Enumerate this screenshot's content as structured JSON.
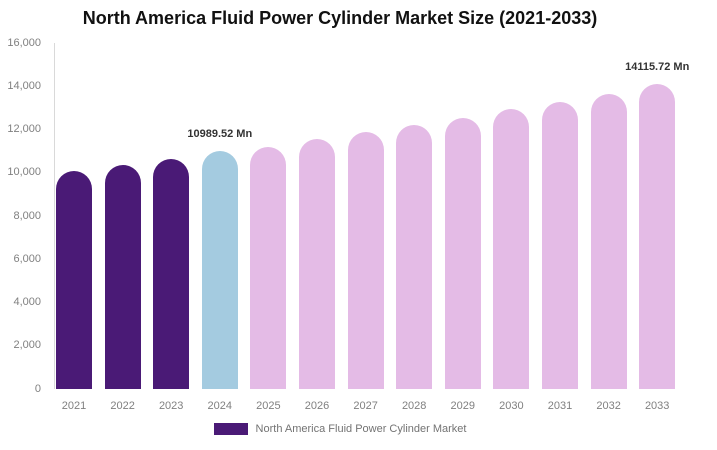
{
  "title": "North America Fluid Power Cylinder Market Size (2021-2033)",
  "legend": {
    "label": "North America Fluid Power Cylinder Market"
  },
  "colors": {
    "historical": "#4A1A76",
    "current": "#A4CBE0",
    "forecast": "#E4BBE6",
    "axis_line": "#D9D9D9",
    "tick_text": "#808080",
    "annotation_text": "#333333",
    "legend_text": "#737373",
    "title_text": "#111111",
    "background": "#FFFFFF"
  },
  "chart_data": {
    "type": "bar",
    "title": "North America Fluid Power Cylinder Market Size (2021-2033)",
    "categories": [
      "2021",
      "2022",
      "2023",
      "2024",
      "2025",
      "2026",
      "2027",
      "2028",
      "2029",
      "2030",
      "2031",
      "2032",
      "2033"
    ],
    "values": [
      10060,
      10340,
      10620,
      10989.52,
      11180,
      11550,
      11870,
      12200,
      12520,
      12940,
      13260,
      13630,
      14115.72
    ],
    "unit": "Mn",
    "series_name": "North America Fluid Power Cylinder Market",
    "xlabel": "",
    "ylabel": "",
    "ylim": [
      0,
      16000
    ],
    "grid": false,
    "legend_position": "bottom",
    "bar_roles": [
      "historical",
      "historical",
      "historical",
      "current",
      "forecast",
      "forecast",
      "forecast",
      "forecast",
      "forecast",
      "forecast",
      "forecast",
      "forecast",
      "forecast"
    ],
    "y_ticks": [
      {
        "value": 0,
        "label": "0"
      },
      {
        "value": 2000,
        "label": "2,000"
      },
      {
        "value": 4000,
        "label": "4,000"
      },
      {
        "value": 6000,
        "label": "6,000"
      },
      {
        "value": 8000,
        "label": "8,000"
      },
      {
        "value": 10000,
        "label": "10,000"
      },
      {
        "value": 12000,
        "label": "12,000"
      },
      {
        "value": 14000,
        "label": "14,000"
      },
      {
        "value": 16000,
        "label": "16,000"
      }
    ],
    "annotations": [
      {
        "category": "2024",
        "text": "10989.52 Mn"
      },
      {
        "category": "2033",
        "text": "14115.72 Mn"
      }
    ]
  }
}
